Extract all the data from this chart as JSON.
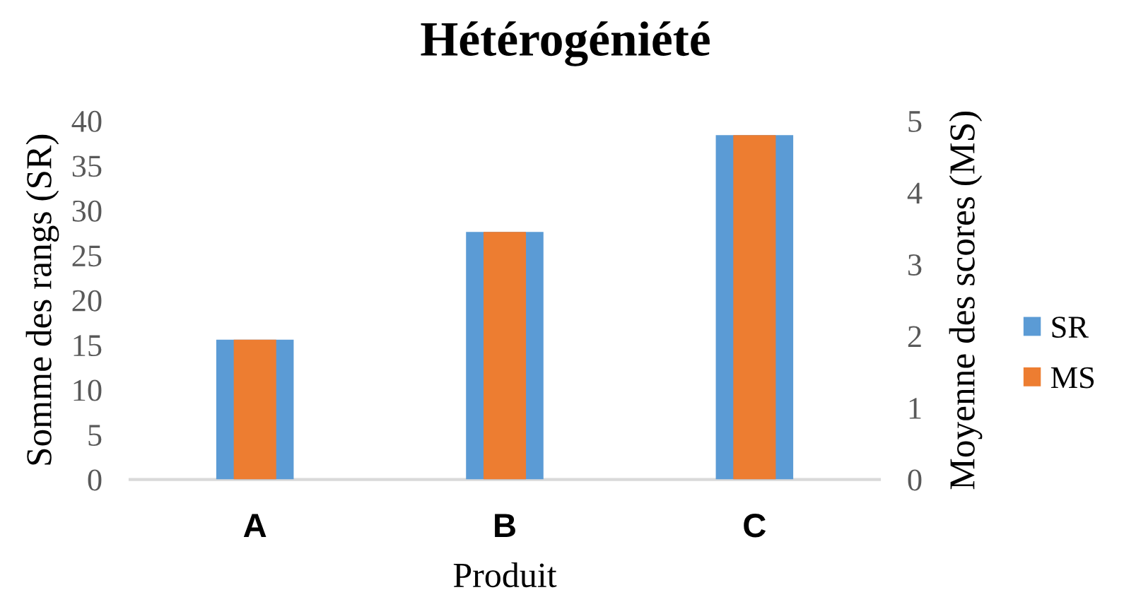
{
  "chart_data": {
    "type": "bar",
    "title": "Hétérogéniété",
    "xlabel": "Produit",
    "ylabel": "Somme des rangs (SR)",
    "y2label": "Moyenne des scores (MS)",
    "categories": [
      "A",
      "B",
      "C"
    ],
    "series": [
      {
        "name": "SR",
        "color": "#5b9bd5",
        "values": [
          15.6,
          27.6,
          38.4
        ]
      },
      {
        "name": "MS",
        "color": "#ed7d31",
        "values": [
          1.95,
          3.45,
          4.8
        ],
        "axis": "y2"
      }
    ],
    "ylim": [
      0,
      40
    ],
    "yticks": [
      0,
      5,
      10,
      15,
      20,
      25,
      30,
      35,
      40
    ],
    "y2lim": [
      0,
      5
    ],
    "y2ticks": [
      0,
      1,
      2,
      3,
      4,
      5
    ],
    "legend": "right",
    "grid": false
  }
}
